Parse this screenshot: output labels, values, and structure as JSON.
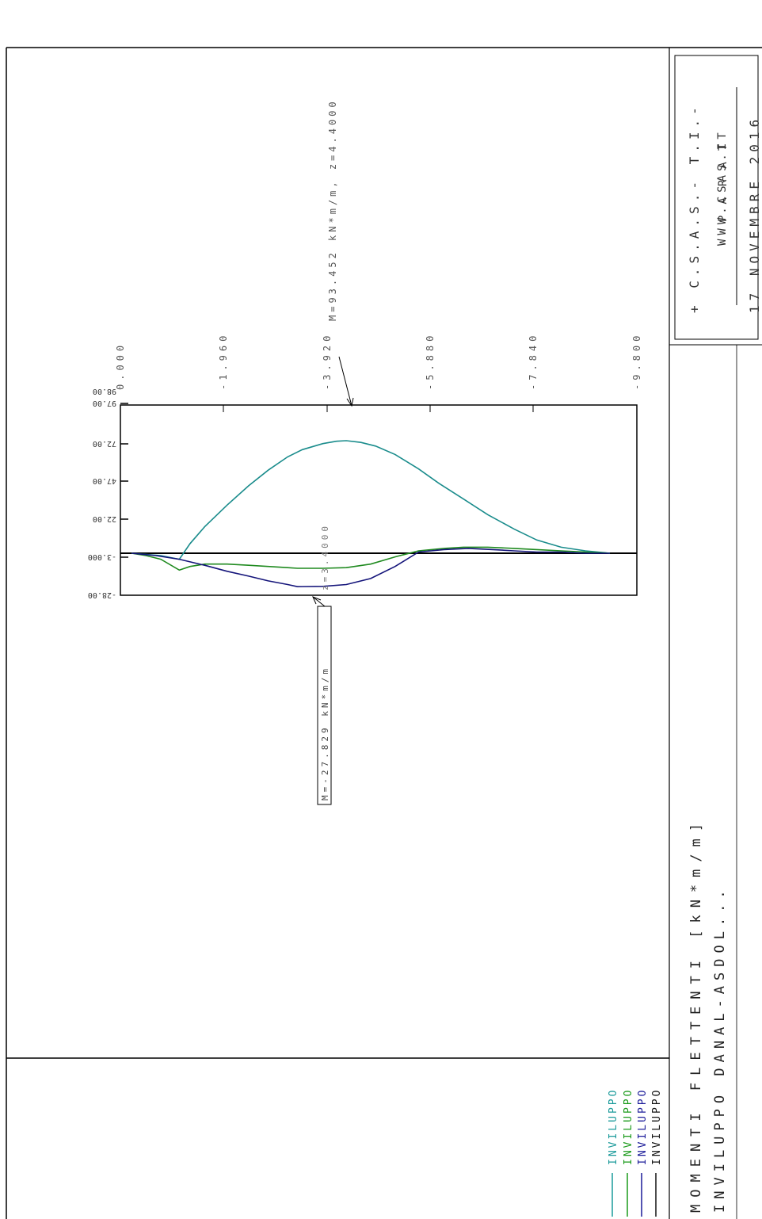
{
  "header": {
    "company": "+ C.S.A.S.- T.I.-",
    "website": "WWW.CSAS.IT",
    "project": "PARAT",
    "date": "17 NOVEMBRE 2016"
  },
  "title_block": {
    "title": "MOMENTI FLETTENTI [kN*m/m]",
    "subtitle": "INVILUPPO DANAL-ASDOL..."
  },
  "legend": {
    "items": [
      {
        "label": "INVILUPPO",
        "color": "#1a9a9a"
      },
      {
        "label": "INVILUPPO",
        "color": "#1a9a1a"
      },
      {
        "label": "INVILUPPO",
        "color": "#1a1a99"
      },
      {
        "label": "INVILUPPO",
        "color": "#111111"
      }
    ]
  },
  "annotations": {
    "max_label": "M=93.452 kN*m/m, z=4.4000",
    "min_label": "M=-27.829 kN*m/m",
    "min_position": "z=3.4000"
  },
  "colors": {
    "teal": "#1a8c8c",
    "green": "#1f8a1f",
    "navy": "#14147a",
    "axis": "#000000"
  },
  "chart_data": {
    "type": "line",
    "xlabel": "",
    "ylabel": "",
    "x_ticks": [
      "0.000",
      "-1.960",
      "-3.920",
      "-5.880",
      "-7.840",
      "-9.800"
    ],
    "y_ticks": [
      "98.00",
      "97.00",
      "72.00",
      "47.00",
      "22.00",
      "-3.000",
      "-28.00"
    ],
    "xlim": [
      0,
      -9.8
    ],
    "ylim": [
      -28,
      98
    ],
    "grid": false,
    "series": [
      {
        "color": "#1a8c8c",
        "points": [
          [
            0.0,
            0
          ],
          [
            0.3,
            -1
          ],
          [
            0.6,
            -2
          ],
          [
            0.98,
            -5
          ],
          [
            1.2,
            8
          ],
          [
            1.5,
            22
          ],
          [
            1.96,
            40
          ],
          [
            2.4,
            56
          ],
          [
            2.8,
            69
          ],
          [
            3.2,
            80
          ],
          [
            3.5,
            86
          ],
          [
            3.92,
            91
          ],
          [
            4.2,
            93
          ],
          [
            4.4,
            93.45
          ],
          [
            4.7,
            92
          ],
          [
            5.0,
            89
          ],
          [
            5.4,
            82
          ],
          [
            5.88,
            70
          ],
          [
            6.3,
            58
          ],
          [
            6.8,
            45
          ],
          [
            7.3,
            32
          ],
          [
            7.84,
            20
          ],
          [
            8.3,
            11
          ],
          [
            8.8,
            5
          ],
          [
            9.3,
            2
          ],
          [
            9.8,
            0
          ]
        ]
      },
      {
        "color": "#1f8a1f",
        "points": [
          [
            0.0,
            0
          ],
          [
            0.3,
            -2
          ],
          [
            0.6,
            -5
          ],
          [
            0.98,
            -14
          ],
          [
            1.2,
            -11
          ],
          [
            1.5,
            -9
          ],
          [
            1.96,
            -9
          ],
          [
            2.4,
            -10
          ],
          [
            2.8,
            -11
          ],
          [
            3.2,
            -12
          ],
          [
            3.4,
            -12.5
          ],
          [
            3.92,
            -12.5
          ],
          [
            4.4,
            -12
          ],
          [
            4.9,
            -9
          ],
          [
            5.4,
            -3
          ],
          [
            5.88,
            2
          ],
          [
            6.4,
            4
          ],
          [
            6.8,
            5
          ],
          [
            7.3,
            5
          ],
          [
            7.84,
            4
          ],
          [
            8.3,
            3
          ],
          [
            8.8,
            2
          ],
          [
            9.3,
            1
          ],
          [
            9.8,
            0
          ]
        ]
      },
      {
        "color": "#14147a",
        "points": [
          [
            0.0,
            0
          ],
          [
            0.5,
            -2
          ],
          [
            0.98,
            -5
          ],
          [
            1.5,
            -10
          ],
          [
            1.96,
            -15
          ],
          [
            2.4,
            -19
          ],
          [
            2.8,
            -23
          ],
          [
            3.2,
            -26
          ],
          [
            3.4,
            -27.8
          ],
          [
            3.92,
            -27.5
          ],
          [
            4.4,
            -26
          ],
          [
            4.9,
            -21
          ],
          [
            5.4,
            -11
          ],
          [
            5.88,
            1
          ],
          [
            6.4,
            3
          ],
          [
            6.9,
            4
          ],
          [
            7.4,
            3
          ],
          [
            7.84,
            2
          ],
          [
            8.3,
            1
          ],
          [
            8.8,
            1
          ],
          [
            9.3,
            0
          ],
          [
            9.8,
            0
          ]
        ]
      }
    ]
  }
}
